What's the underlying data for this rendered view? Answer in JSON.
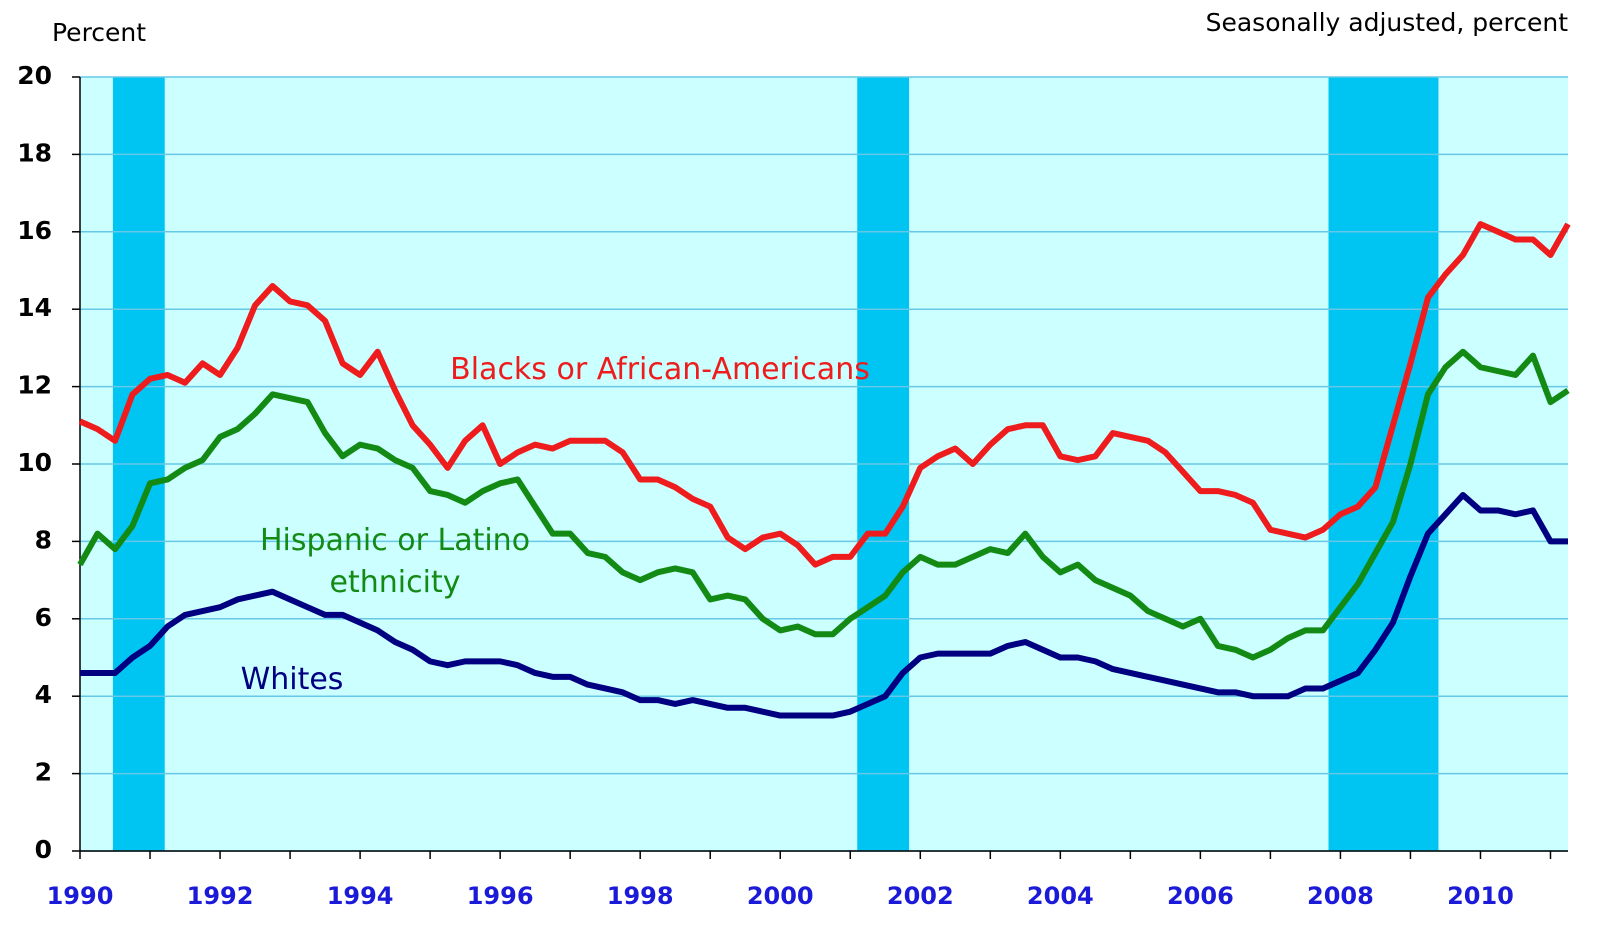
{
  "chart_data": {
    "type": "line",
    "y_axis_label": "Percent",
    "note": "Seasonally adjusted, percent",
    "xlim": [
      1990,
      2011.25
    ],
    "xticks": [
      1990,
      1992,
      1994,
      1996,
      1998,
      2000,
      2002,
      2004,
      2006,
      2008,
      2010
    ],
    "xminor_ticks": [
      1991,
      1993,
      1995,
      1997,
      1999,
      2001,
      2003,
      2005,
      2007,
      2009,
      2011
    ],
    "ylim": [
      0,
      20
    ],
    "yticks": [
      0,
      2,
      4,
      6,
      8,
      10,
      12,
      14,
      16,
      18,
      20
    ],
    "grid": true,
    "background_color": "#ccffff",
    "shaded_periods": [
      [
        1990.47,
        1991.21
      ],
      [
        2001.1,
        2001.84
      ],
      [
        2007.83,
        2009.4
      ]
    ],
    "shade_color": "#00c4f2",
    "x": [
      1990.0,
      1990.25,
      1990.5,
      1990.75,
      1991.0,
      1991.25,
      1991.5,
      1991.75,
      1992.0,
      1992.25,
      1992.5,
      1992.75,
      1993.0,
      1993.25,
      1993.5,
      1993.75,
      1994.0,
      1994.25,
      1994.5,
      1994.75,
      1995.0,
      1995.25,
      1995.5,
      1995.75,
      1996.0,
      1996.25,
      1996.5,
      1996.75,
      1997.0,
      1997.25,
      1997.5,
      1997.75,
      1998.0,
      1998.25,
      1998.5,
      1998.75,
      1999.0,
      1999.25,
      1999.5,
      1999.75,
      2000.0,
      2000.25,
      2000.5,
      2000.75,
      2001.0,
      2001.25,
      2001.5,
      2001.75,
      2002.0,
      2002.25,
      2002.5,
      2002.75,
      2003.0,
      2003.25,
      2003.5,
      2003.75,
      2004.0,
      2004.25,
      2004.5,
      2004.75,
      2005.0,
      2005.25,
      2005.5,
      2005.75,
      2006.0,
      2006.25,
      2006.5,
      2006.75,
      2007.0,
      2007.25,
      2007.5,
      2007.75,
      2008.0,
      2008.25,
      2008.5,
      2008.75,
      2009.0,
      2009.25,
      2009.5,
      2009.75,
      2010.0,
      2010.25,
      2010.5,
      2010.75,
      2011.0,
      2011.25
    ],
    "series": [
      {
        "name": "Blacks or African-Americans",
        "color": "#ee1c1c",
        "values": [
          11.1,
          10.9,
          10.6,
          11.8,
          12.2,
          12.3,
          12.1,
          12.6,
          12.3,
          13.0,
          14.1,
          14.6,
          14.2,
          14.1,
          13.7,
          12.6,
          12.3,
          12.9,
          11.9,
          11.0,
          10.5,
          9.9,
          10.6,
          11.0,
          10.0,
          10.3,
          10.5,
          10.4,
          10.6,
          10.6,
          10.6,
          10.3,
          9.6,
          9.6,
          9.4,
          9.1,
          8.9,
          8.1,
          7.8,
          8.1,
          8.2,
          7.9,
          7.4,
          7.6,
          7.6,
          8.2,
          8.2,
          8.9,
          9.9,
          10.2,
          10.4,
          10.0,
          10.5,
          10.9,
          11.0,
          11.0,
          10.2,
          10.1,
          10.2,
          10.8,
          10.7,
          10.6,
          10.3,
          9.8,
          9.3,
          9.3,
          9.2,
          9.0,
          8.3,
          8.2,
          8.1,
          8.3,
          8.7,
          8.9,
          9.4,
          11.0,
          12.6,
          14.3,
          14.9,
          15.4,
          16.2,
          16.0,
          15.8,
          15.8,
          15.4,
          16.2
        ]
      },
      {
        "name": "Hispanic or Latino ethnicity",
        "color": "#138a13",
        "values": [
          7.4,
          8.2,
          7.8,
          8.4,
          9.5,
          9.6,
          9.9,
          10.1,
          10.7,
          10.9,
          11.3,
          11.8,
          11.7,
          11.6,
          10.8,
          10.2,
          10.5,
          10.4,
          10.1,
          9.9,
          9.3,
          9.2,
          9.0,
          9.3,
          9.5,
          9.6,
          8.9,
          8.2,
          8.2,
          7.7,
          7.6,
          7.2,
          7.0,
          7.2,
          7.3,
          7.2,
          6.5,
          6.6,
          6.5,
          6.0,
          5.7,
          5.8,
          5.6,
          5.6,
          6.0,
          6.3,
          6.6,
          7.2,
          7.6,
          7.4,
          7.4,
          7.6,
          7.8,
          7.7,
          8.2,
          7.6,
          7.2,
          7.4,
          7.0,
          6.8,
          6.6,
          6.2,
          6.0,
          5.8,
          6.0,
          5.3,
          5.2,
          5.0,
          5.2,
          5.5,
          5.7,
          5.7,
          6.3,
          6.9,
          7.7,
          8.5,
          10.0,
          11.8,
          12.5,
          12.9,
          12.5,
          12.4,
          12.3,
          12.8,
          11.6,
          11.9
        ]
      },
      {
        "name": "Whites",
        "color": "#000080",
        "values": [
          4.6,
          4.6,
          4.6,
          5.0,
          5.3,
          5.8,
          6.1,
          6.2,
          6.3,
          6.5,
          6.6,
          6.7,
          6.5,
          6.3,
          6.1,
          6.1,
          5.9,
          5.7,
          5.4,
          5.2,
          4.9,
          4.8,
          4.9,
          4.9,
          4.9,
          4.8,
          4.6,
          4.5,
          4.5,
          4.3,
          4.2,
          4.1,
          3.9,
          3.9,
          3.8,
          3.9,
          3.8,
          3.7,
          3.7,
          3.6,
          3.5,
          3.5,
          3.5,
          3.5,
          3.6,
          3.8,
          4.0,
          4.6,
          5.0,
          5.1,
          5.1,
          5.1,
          5.1,
          5.3,
          5.4,
          5.2,
          5.0,
          5.0,
          4.9,
          4.7,
          4.6,
          4.5,
          4.4,
          4.3,
          4.2,
          4.1,
          4.1,
          4.0,
          4.0,
          4.0,
          4.2,
          4.2,
          4.4,
          4.6,
          5.2,
          5.9,
          7.1,
          8.2,
          8.7,
          9.2,
          8.8,
          8.8,
          8.7,
          8.8,
          8.0,
          8.0
        ]
      }
    ]
  }
}
